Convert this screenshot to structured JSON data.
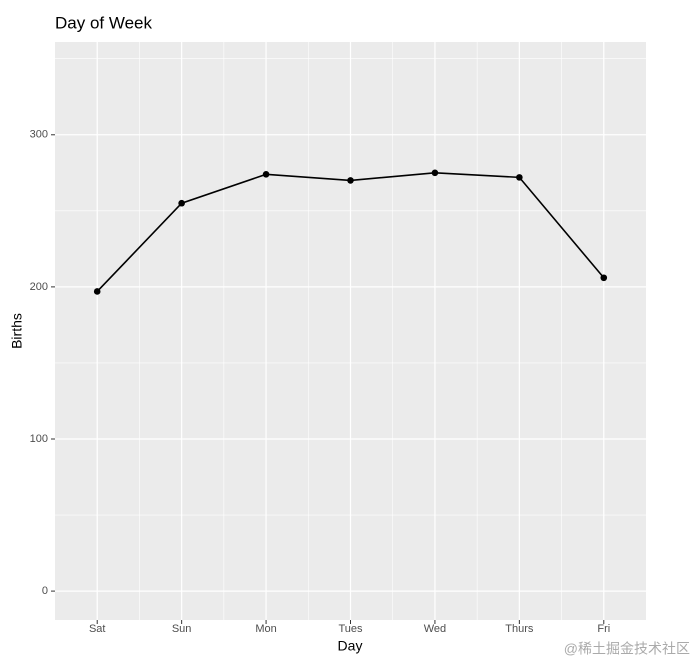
{
  "chart_data": {
    "type": "line",
    "title": "Day of Week",
    "x_label": "Day",
    "y_label": "Births",
    "categories": [
      "Sat",
      "Sun",
      "Mon",
      "Tues",
      "Wed",
      "Thurs",
      "Fri"
    ],
    "values": [
      197,
      255,
      274,
      270,
      275,
      272,
      206
    ],
    "color": "#000000",
    "ylim": [
      -19,
      361
    ],
    "yticks": [
      0,
      100,
      200,
      300
    ],
    "minor_yticks": [
      50,
      150,
      250,
      350
    ],
    "grid": true
  },
  "watermark": "@稀土掘金技术社区"
}
